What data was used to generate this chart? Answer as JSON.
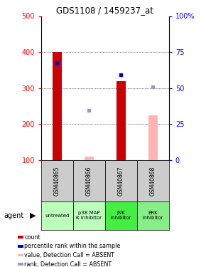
{
  "title": "GDS1108 / 1459237_at",
  "samples": [
    "GSM40865",
    "GSM40866",
    "GSM40867",
    "GSM40868"
  ],
  "agents": [
    "untreated",
    "p38 MAP\nK inhibitor",
    "JNK\ninhibitor",
    "ERK\ninhibitor"
  ],
  "agent_colors": [
    "#bbffbb",
    "#bbffbb",
    "#44ee44",
    "#88ee88"
  ],
  "ylim_left": [
    100,
    500
  ],
  "ylim_right": [
    0,
    100
  ],
  "yticks_left": [
    100,
    200,
    300,
    400,
    500
  ],
  "yticks_right": [
    0,
    25,
    50,
    75,
    100
  ],
  "yticklabels_right": [
    "0",
    "25",
    "50",
    "75",
    "100%"
  ],
  "red_bars": [
    400,
    null,
    320,
    null
  ],
  "pink_bars": [
    null,
    110,
    null,
    225
  ],
  "blue_dots": [
    370,
    null,
    338,
    null
  ],
  "lavender_dots": [
    null,
    238,
    null,
    303
  ],
  "red_bar_color": "#cc0000",
  "pink_bar_color": "#ffb3b3",
  "blue_dot_color": "#0000cc",
  "lavender_dot_color": "#9999cc",
  "sample_bg_color": "#cccccc",
  "grid_yticks": [
    200,
    300,
    400
  ],
  "legend_items": [
    {
      "label": "count",
      "color": "#cc0000"
    },
    {
      "label": "percentile rank within the sample",
      "color": "#0000cc"
    },
    {
      "label": "value, Detection Call = ABSENT",
      "color": "#ffb3b3"
    },
    {
      "label": "rank, Detection Call = ABSENT",
      "color": "#9999cc"
    }
  ]
}
